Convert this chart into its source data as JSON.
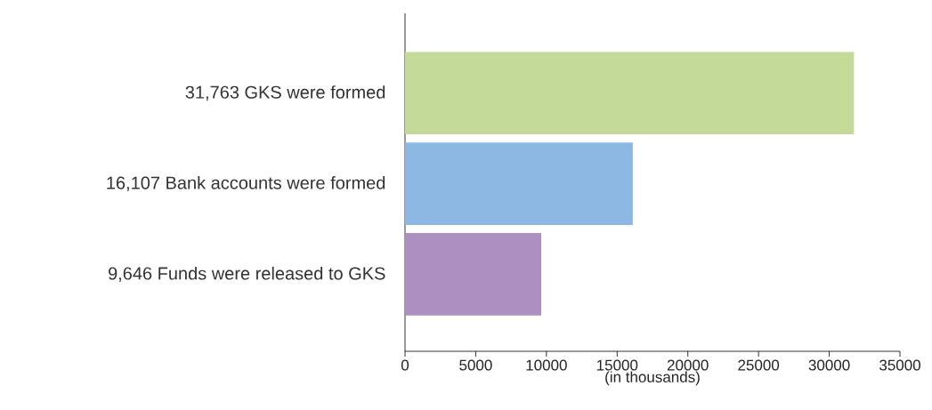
{
  "chart_data": {
    "type": "bar",
    "orientation": "horizontal",
    "categories": [
      "31,763 GKS were formed",
      "16,107 Bank accounts were formed",
      "9,646 Funds were released to GKS"
    ],
    "values": [
      31763,
      16107,
      9646
    ],
    "colors": [
      "#c3da98",
      "#8db8e3",
      "#ad8fc1"
    ],
    "xlim": [
      0,
      35000
    ],
    "xticks": [
      0,
      5000,
      10000,
      15000,
      20000,
      25000,
      30000,
      35000
    ],
    "xlabel": "(in thousands)"
  }
}
